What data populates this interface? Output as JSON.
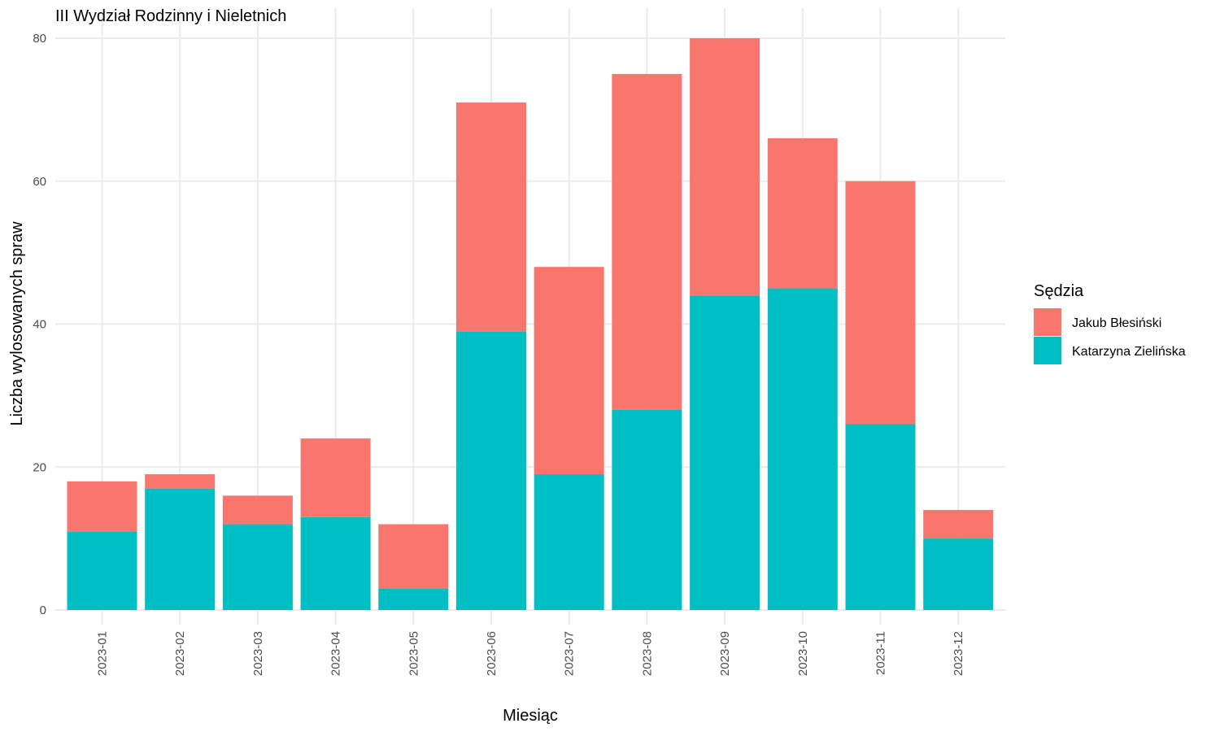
{
  "chart_data": {
    "type": "bar",
    "stacked": true,
    "title": "III Wydział Rodzinny i Nieletnich",
    "xlabel": "Miesiąc",
    "ylabel": "Liczba wylosowanych spraw",
    "ylim": [
      0,
      80
    ],
    "yticks": [
      0,
      20,
      40,
      60,
      80
    ],
    "grid": true,
    "categories": [
      "2023-01",
      "2023-02",
      "2023-03",
      "2023-04",
      "2023-05",
      "2023-06",
      "2023-07",
      "2023-08",
      "2023-09",
      "2023-10",
      "2023-11",
      "2023-12"
    ],
    "series": [
      {
        "name": "Katarzyna Zielińska",
        "color": "#00BFC4",
        "values": [
          11,
          17,
          12,
          13,
          3,
          39,
          19,
          28,
          44,
          45,
          26,
          10
        ]
      },
      {
        "name": "Jakub Błesiński",
        "color": "#F8766D",
        "values": [
          7,
          2,
          4,
          11,
          9,
          32,
          29,
          47,
          36,
          21,
          34,
          4
        ]
      }
    ],
    "legend": {
      "title": "Sędzia",
      "placement": "right",
      "order": [
        "Jakub Błesiński",
        "Katarzyna Zielińska"
      ]
    }
  }
}
